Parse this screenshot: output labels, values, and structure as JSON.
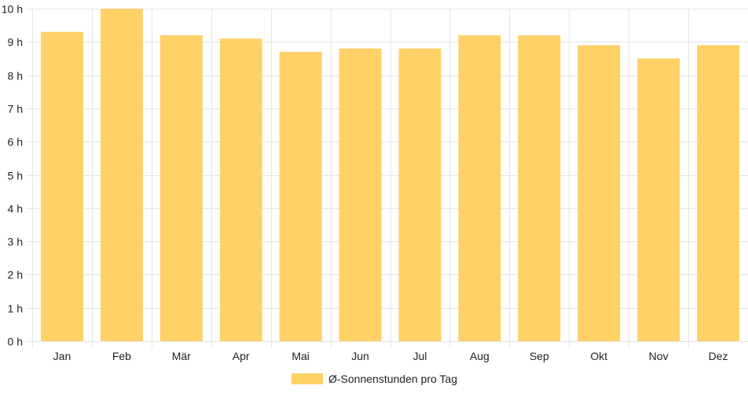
{
  "chart_data": {
    "type": "bar",
    "categories": [
      "Jan",
      "Feb",
      "Mär",
      "Apr",
      "Mai",
      "Jun",
      "Jul",
      "Aug",
      "Sep",
      "Okt",
      "Nov",
      "Dez"
    ],
    "series": [
      {
        "name": "Ø-Sonnenstunden pro Tag",
        "values": [
          9.3,
          10.0,
          9.2,
          9.1,
          8.7,
          8.8,
          8.8,
          9.2,
          9.2,
          8.9,
          8.5,
          8.9
        ],
        "color": "#ffd166"
      }
    ],
    "ylim": [
      0,
      10
    ],
    "y_ticks": [
      0,
      1,
      2,
      3,
      4,
      5,
      6,
      7,
      8,
      9,
      10
    ],
    "y_tick_suffix": " h",
    "grid": true,
    "legend": "bottom-center",
    "colors": {
      "grid": "#e5e5e5",
      "text": "#222222"
    }
  }
}
